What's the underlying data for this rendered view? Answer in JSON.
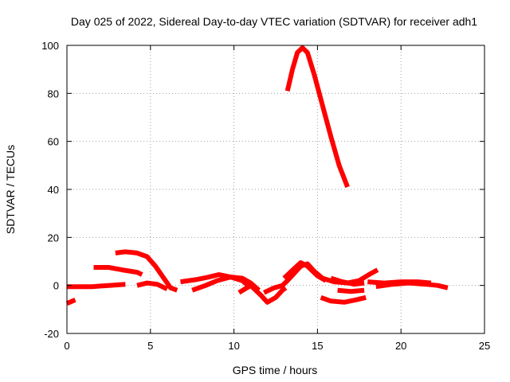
{
  "chart_data": {
    "type": "line",
    "title": "Day 025 of 2022, Sidereal Day-to-day VTEC variation (SDTVAR) for receiver adh1",
    "xlabel": "GPS time / hours",
    "ylabel": "SDTVAR / TECUs",
    "xlim": [
      0,
      25
    ],
    "ylim": [
      -20,
      100
    ],
    "xticks": [
      0,
      5,
      10,
      15,
      20,
      25
    ],
    "yticks": [
      -20,
      0,
      20,
      40,
      60,
      80,
      100
    ],
    "grid": true,
    "line_color": "#ff0000",
    "series": [
      {
        "name": "s1",
        "points": [
          [
            13.2,
            81
          ],
          [
            13.5,
            90
          ],
          [
            13.8,
            97
          ],
          [
            14.1,
            99
          ],
          [
            14.4,
            97
          ],
          [
            14.8,
            88
          ],
          [
            15.3,
            75
          ],
          [
            15.8,
            62
          ],
          [
            16.3,
            50
          ],
          [
            16.8,
            41
          ]
        ]
      },
      {
        "name": "s2",
        "points": [
          [
            2.9,
            13.5
          ],
          [
            3.5,
            14
          ],
          [
            4.2,
            13.5
          ],
          [
            4.8,
            12
          ],
          [
            5.3,
            8
          ],
          [
            5.8,
            3
          ],
          [
            6.2,
            -1
          ],
          [
            6.6,
            -2
          ]
        ]
      },
      {
        "name": "s3",
        "points": [
          [
            1.6,
            7.5
          ],
          [
            2.5,
            7.5
          ],
          [
            3.3,
            6.5
          ],
          [
            4.2,
            5.5
          ],
          [
            4.5,
            4.5
          ]
        ]
      },
      {
        "name": "s4",
        "points": [
          [
            0.0,
            -0.5
          ],
          [
            0.6,
            -0.5
          ],
          [
            1.5,
            -0.5
          ],
          [
            2.5,
            0
          ],
          [
            3.5,
            0.5
          ]
        ]
      },
      {
        "name": "s5",
        "points": [
          [
            0.0,
            -7.5
          ],
          [
            0.5,
            -6
          ]
        ]
      },
      {
        "name": "s6",
        "points": [
          [
            4.2,
            0
          ],
          [
            4.8,
            1
          ],
          [
            5.4,
            0.5
          ],
          [
            6.0,
            -1.5
          ]
        ]
      },
      {
        "name": "s7",
        "points": [
          [
            6.8,
            1.5
          ],
          [
            7.8,
            2.5
          ],
          [
            8.5,
            3.5
          ],
          [
            9.1,
            4.5
          ],
          [
            9.8,
            3.5
          ],
          [
            10.5,
            3
          ],
          [
            11.0,
            1
          ],
          [
            11.5,
            -2
          ]
        ]
      },
      {
        "name": "s8",
        "points": [
          [
            7.5,
            -2
          ],
          [
            8.3,
            0
          ],
          [
            9.0,
            2
          ],
          [
            9.8,
            3.5
          ],
          [
            10.5,
            2
          ],
          [
            11.0,
            -1
          ]
        ]
      },
      {
        "name": "s9",
        "points": [
          [
            10.3,
            -3
          ],
          [
            11.0,
            0
          ],
          [
            11.6,
            -4
          ],
          [
            12.0,
            -7
          ],
          [
            12.5,
            -5
          ],
          [
            12.9,
            -2
          ],
          [
            13.1,
            -1
          ]
        ]
      },
      {
        "name": "s10",
        "points": [
          [
            11.8,
            -3
          ],
          [
            12.4,
            -1
          ],
          [
            12.9,
            0
          ],
          [
            13.2,
            2
          ],
          [
            13.6,
            5
          ],
          [
            14.0,
            8
          ],
          [
            14.4,
            9
          ],
          [
            14.8,
            6
          ],
          [
            15.3,
            3
          ],
          [
            16.0,
            1.5
          ],
          [
            16.8,
            1
          ],
          [
            17.5,
            2
          ],
          [
            18.2,
            5
          ],
          [
            18.6,
            6.5
          ]
        ]
      },
      {
        "name": "s11",
        "points": [
          [
            13.0,
            3
          ],
          [
            13.6,
            7
          ],
          [
            14.0,
            9.5
          ],
          [
            14.4,
            8
          ],
          [
            15.0,
            4
          ],
          [
            15.5,
            2
          ]
        ]
      },
      {
        "name": "s12",
        "points": [
          [
            16.2,
            -2
          ],
          [
            17.0,
            -2.5
          ],
          [
            17.8,
            -2
          ]
        ]
      },
      {
        "name": "s13",
        "points": [
          [
            15.2,
            -5
          ],
          [
            15.8,
            -6.5
          ],
          [
            16.6,
            -7
          ],
          [
            17.3,
            -6
          ],
          [
            17.9,
            -5
          ]
        ]
      },
      {
        "name": "s14",
        "points": [
          [
            15.8,
            3
          ],
          [
            16.5,
            1.5
          ],
          [
            17.2,
            0.5
          ],
          [
            17.8,
            1
          ]
        ]
      },
      {
        "name": "s15",
        "points": [
          [
            18.0,
            1.5
          ],
          [
            19.0,
            1
          ],
          [
            20.0,
            1.5
          ],
          [
            21.0,
            1.5
          ],
          [
            21.8,
            1
          ]
        ]
      },
      {
        "name": "s16",
        "points": [
          [
            18.5,
            -0.5
          ],
          [
            19.5,
            0.5
          ],
          [
            20.5,
            1
          ],
          [
            21.5,
            0.5
          ],
          [
            22.2,
            0
          ],
          [
            22.8,
            -1
          ]
        ]
      }
    ]
  }
}
